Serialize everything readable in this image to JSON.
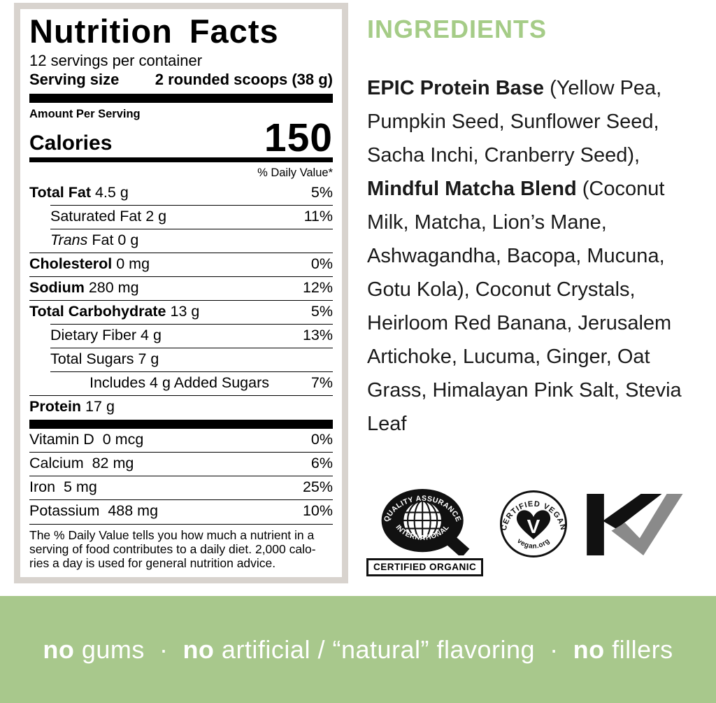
{
  "colors": {
    "accent_green": "#a5cc87",
    "banner_green": "#a8c88c",
    "frame_gray": "#d8d3ce",
    "label_black": "#000000",
    "kosher_gray": "#8a8a8a"
  },
  "nutrition_label": {
    "title": "Nutrition Facts",
    "servings_per_container": "12 servings per container",
    "serving_size_label": "Serving size",
    "serving_size_value": "2 rounded scoops (38 g)",
    "amount_per_serving": "Amount Per Serving",
    "calories_label": "Calories",
    "calories_value": "150",
    "daily_value_header": "% Daily Value*",
    "rows": [
      {
        "parts": [
          {
            "t": "Total Fat",
            "s": "b"
          },
          {
            "t": " 4.5 g",
            "s": "r"
          }
        ],
        "dv": "5%",
        "indent": 0,
        "sep": "none"
      },
      {
        "parts": [
          {
            "t": "Saturated Fat 2 g",
            "s": "r"
          }
        ],
        "dv": "11%",
        "indent": 1,
        "sep": "indent"
      },
      {
        "parts": [
          {
            "t": "Trans",
            "s": "i"
          },
          {
            "t": " Fat 0 g",
            "s": "r"
          }
        ],
        "dv": "",
        "indent": 1,
        "sep": "indent"
      },
      {
        "parts": [
          {
            "t": "Cholesterol",
            "s": "b"
          },
          {
            "t": " 0 mg",
            "s": "r"
          }
        ],
        "dv": "0%",
        "indent": 0,
        "sep": "full"
      },
      {
        "parts": [
          {
            "t": "Sodium",
            "s": "b"
          },
          {
            "t": " 280 mg",
            "s": "r"
          }
        ],
        "dv": "12%",
        "indent": 0,
        "sep": "full"
      },
      {
        "parts": [
          {
            "t": "Total Carbohydrate",
            "s": "b"
          },
          {
            "t": " 13 g",
            "s": "r"
          }
        ],
        "dv": "5%",
        "indent": 0,
        "sep": "full"
      },
      {
        "parts": [
          {
            "t": "Dietary Fiber 4 g",
            "s": "r"
          }
        ],
        "dv": "13%",
        "indent": 1,
        "sep": "indent"
      },
      {
        "parts": [
          {
            "t": "Total Sugars 7 g",
            "s": "r"
          }
        ],
        "dv": "",
        "indent": 1,
        "sep": "indent"
      },
      {
        "parts": [
          {
            "t": "Includes 4 g Added Sugars",
            "s": "r"
          }
        ],
        "dv": "7%",
        "indent": 2,
        "sep": "indent"
      },
      {
        "parts": [
          {
            "t": "Protein",
            "s": "b"
          },
          {
            "t": " 17 g",
            "s": "r"
          }
        ],
        "dv": "",
        "indent": 0,
        "sep": "full"
      }
    ],
    "micronutrients": [
      {
        "parts": [
          {
            "t": "Vitamin D  0 mcg",
            "s": "r"
          }
        ],
        "dv": "0%",
        "indent": 0,
        "sep": "none"
      },
      {
        "parts": [
          {
            "t": "Calcium  82 mg",
            "s": "r"
          }
        ],
        "dv": "6%",
        "indent": 0,
        "sep": "full"
      },
      {
        "parts": [
          {
            "t": "Iron  5 mg",
            "s": "r"
          }
        ],
        "dv": "25%",
        "indent": 0,
        "sep": "full"
      },
      {
        "parts": [
          {
            "t": "Potassium  488 mg",
            "s": "r"
          }
        ],
        "dv": "10%",
        "indent": 0,
        "sep": "full"
      }
    ],
    "footnote": "The % Daily Value tells you how much a nutrient in a\nserving of food contributes to a daily diet. 2,000 calo-\nries a day is used for general nutrition advice."
  },
  "ingredients": {
    "heading": "INGREDIENTS",
    "lines": [
      [
        {
          "t": "EPIC Protein Base",
          "s": "b"
        },
        {
          "t": " (Yellow Pea,",
          "s": "r"
        }
      ],
      [
        {
          "t": "Pumpkin Seed, Sunflower Seed,",
          "s": "r"
        }
      ],
      [
        {
          "t": "Sacha Inchi, Cranberry Seed),",
          "s": "r"
        }
      ],
      [
        {
          "t": "Mindful Matcha Blend",
          "s": "b"
        },
        {
          "t": " (Coconut",
          "s": "r"
        }
      ],
      [
        {
          "t": "Milk, Matcha, Lion’s Mane,",
          "s": "r"
        }
      ],
      [
        {
          "t": "Ashwagandha, Bacopa, Mucuna,",
          "s": "r"
        }
      ],
      [
        {
          "t": "Gotu Kola), Coconut Crystals,",
          "s": "r"
        }
      ],
      [
        {
          "t": "Heirloom Red Banana, Jerusalem",
          "s": "r"
        }
      ],
      [
        {
          "t": "Artichoke, Lucuma, Ginger, Oat",
          "s": "r"
        }
      ],
      [
        {
          "t": "Grass, Himalayan Pink Salt, Stevia",
          "s": "r"
        }
      ],
      [
        {
          "t": "Leaf",
          "s": "r"
        }
      ]
    ]
  },
  "badges": {
    "qai": {
      "arc_top": "QUALITY ASSURANCE",
      "arc_bottom": "INTERNATIONAL",
      "caption": "CERTIFIED ORGANIC"
    },
    "vegan": {
      "arc_top": "CERTIFIED VEGAN",
      "arc_bottom": "vegan.org",
      "letter": "V"
    },
    "kosher": {
      "name": "kosher-check-mark"
    }
  },
  "banner": {
    "segments": [
      {
        "t": "no",
        "s": "b"
      },
      {
        "t": " gums",
        "s": "r"
      },
      {
        "t": "  ·  ",
        "s": "r"
      },
      {
        "t": "no",
        "s": "b"
      },
      {
        "t": " artificial / “natural” flavoring",
        "s": "r"
      },
      {
        "t": "  ·  ",
        "s": "r"
      },
      {
        "t": "no",
        "s": "b"
      },
      {
        "t": " fillers",
        "s": "r"
      }
    ]
  }
}
